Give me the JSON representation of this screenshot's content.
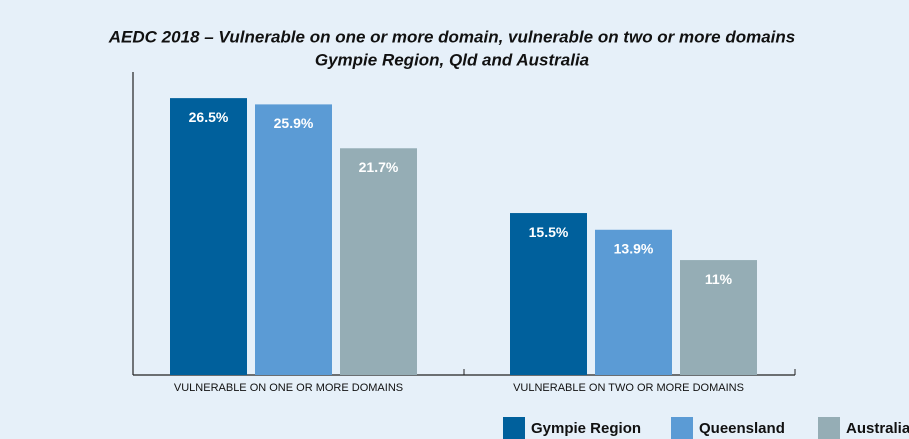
{
  "chart_data": {
    "type": "bar",
    "title": "AEDC 2018 – Vulnerable on one or more domain, vulnerable on two or more domains",
    "subtitle": "Gympie Region, Qld and Australia",
    "categories": [
      "VULNERABLE ON ONE OR MORE DOMAINS",
      "VULNERABLE ON TWO OR MORE DOMAINS"
    ],
    "series": [
      {
        "name": "Gympie Region",
        "color": "#00609c",
        "values": [
          26.5,
          15.5
        ],
        "value_labels": [
          "26.5%",
          "15.5%"
        ]
      },
      {
        "name": "Queensland",
        "color": "#5b9bd5",
        "values": [
          25.9,
          13.9
        ],
        "value_labels": [
          "25.9%",
          "13.9%"
        ]
      },
      {
        "name": "Australia",
        "color": "#95adb5",
        "values": [
          21.7,
          11
        ],
        "value_labels": [
          "21.7%",
          "11%"
        ]
      }
    ],
    "ylim": [
      0,
      29
    ],
    "legend": "bottom-right"
  }
}
